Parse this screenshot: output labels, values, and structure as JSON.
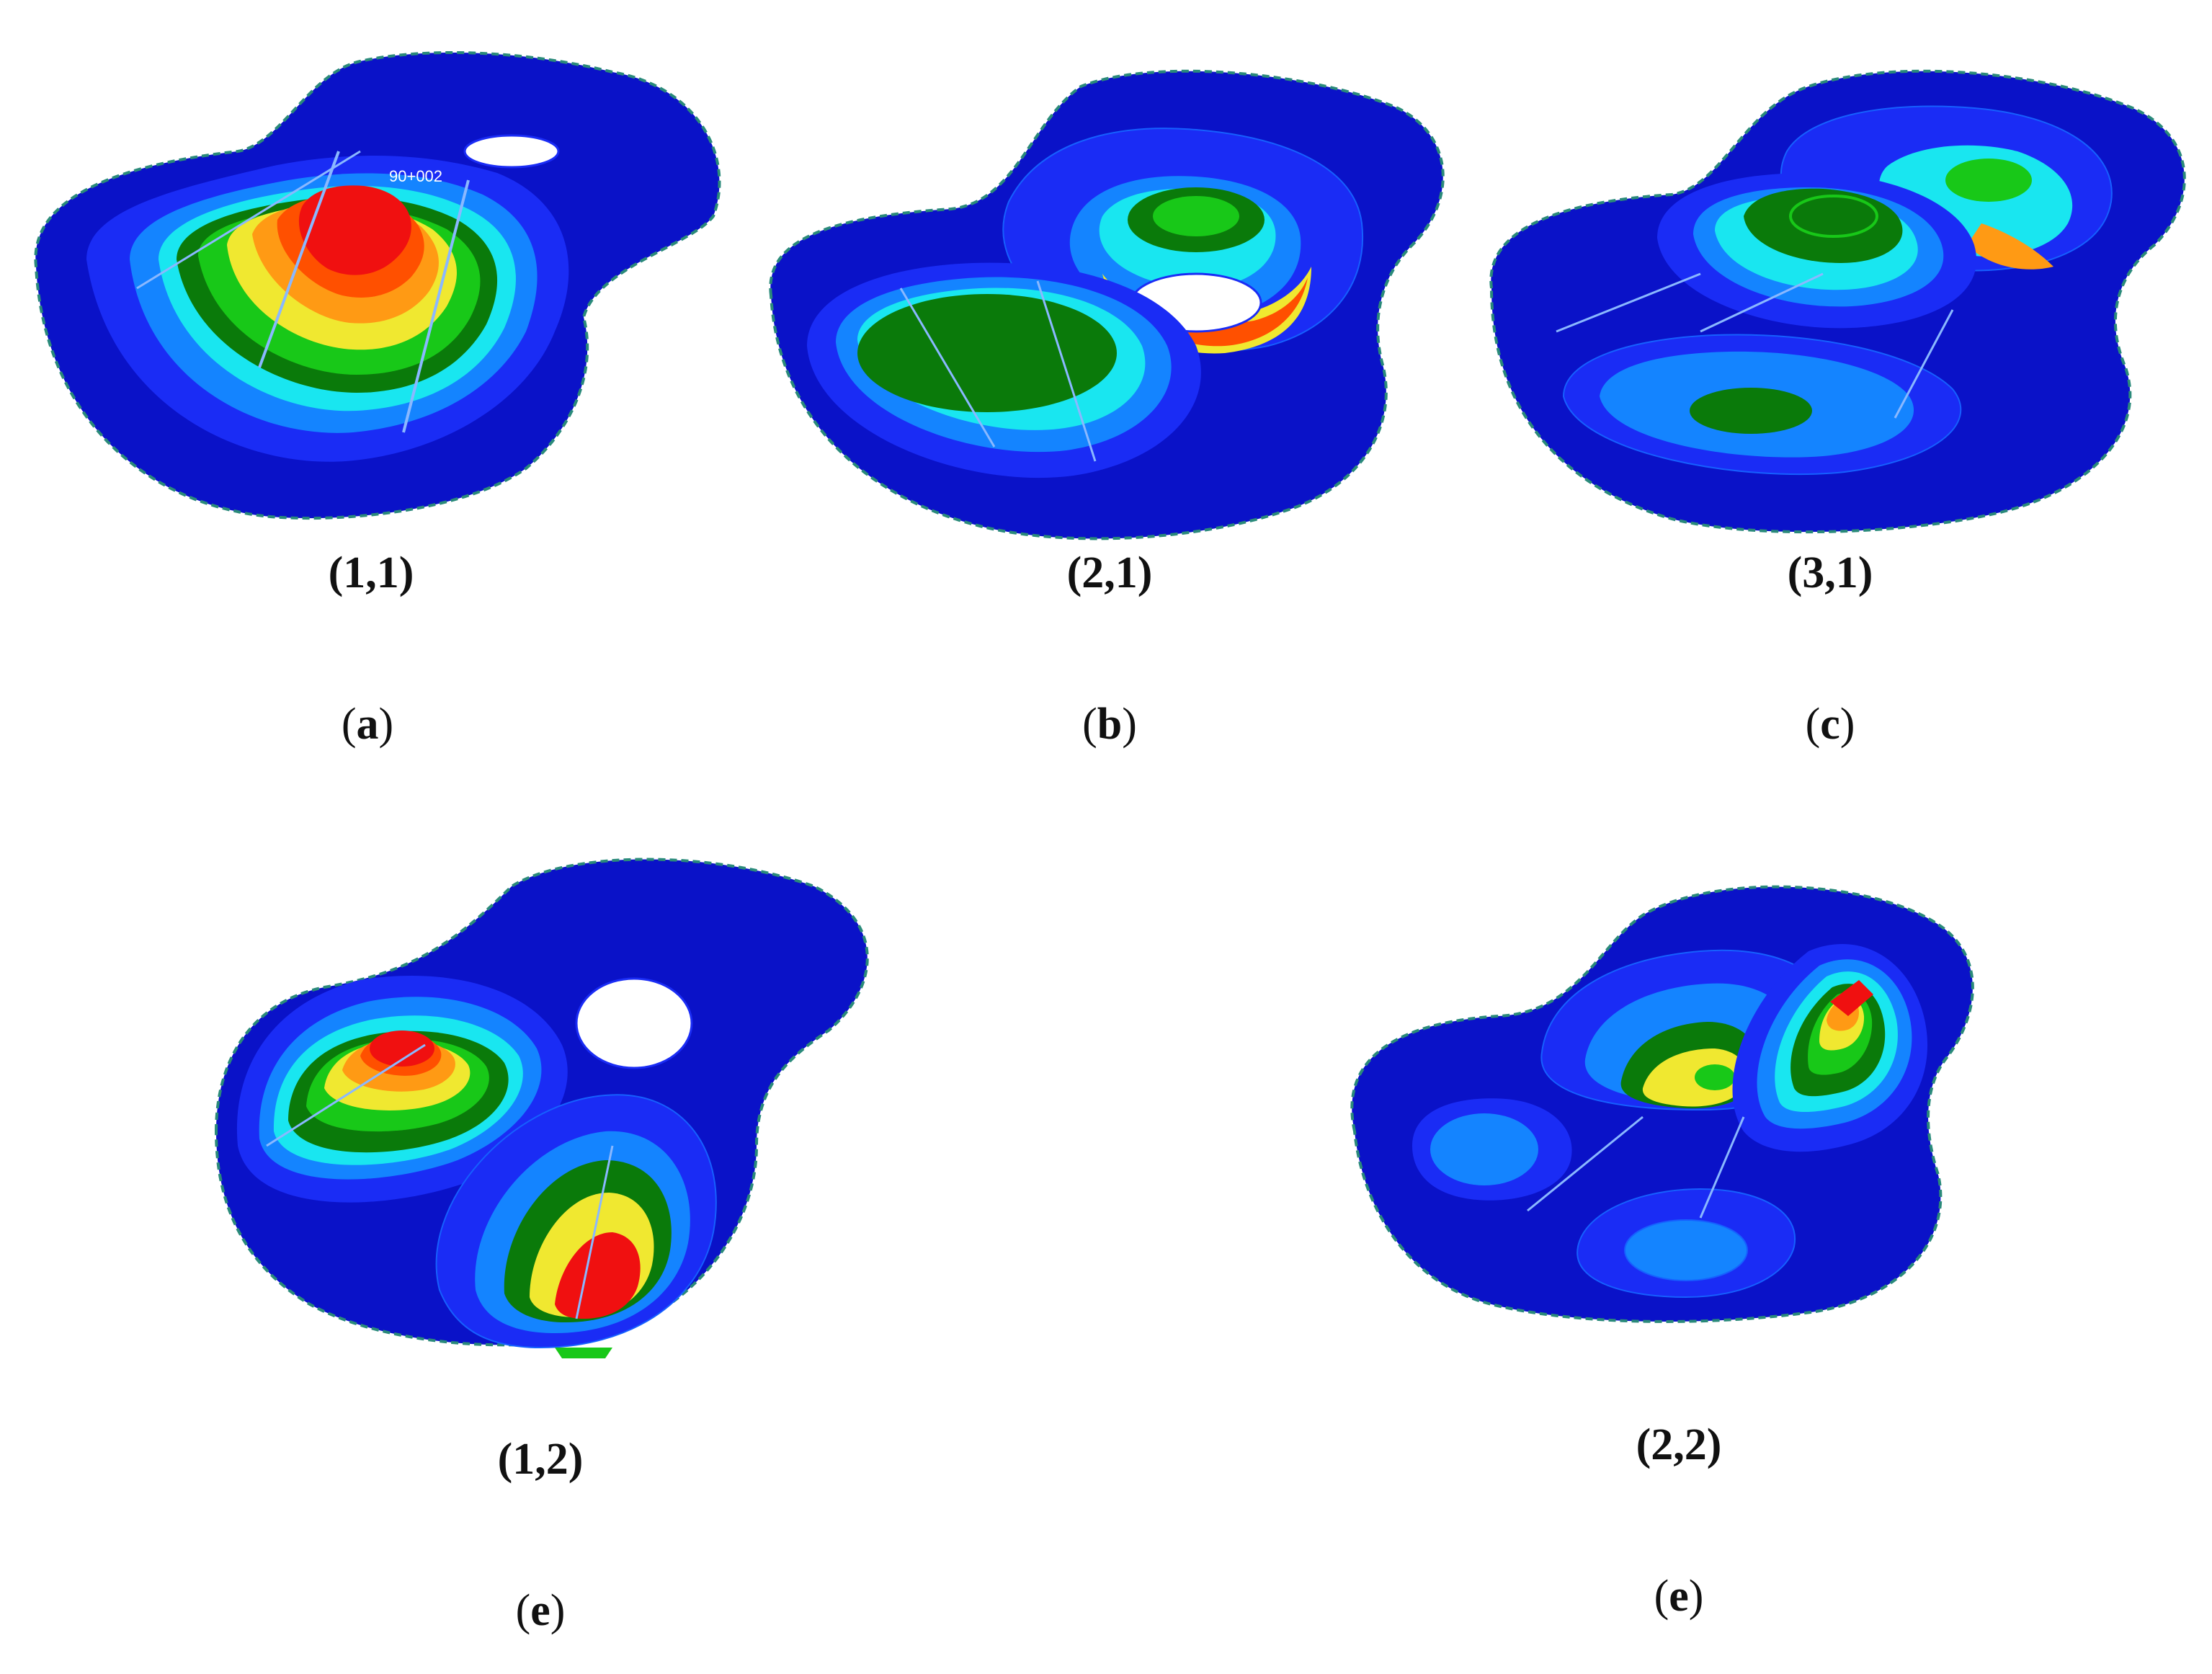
{
  "colors": {
    "outer": "#0a12c8",
    "level1": "#1a2cf5",
    "level2": "#1484ff",
    "level3": "#19e6f0",
    "level4": "#0a7a0a",
    "level5": "#18c818",
    "level6": "#f0e830",
    "level7": "#ff9a14",
    "level8": "#ff5000",
    "level9": "#f01010",
    "mesh": "#1660ff",
    "edge": "#2a8a7a",
    "text": "#111111"
  },
  "panels": [
    {
      "mode": "(1,1)",
      "letter": "a",
      "annotation": "90+002"
    },
    {
      "mode": "(2,1)",
      "letter": "b"
    },
    {
      "mode": "(3,1)",
      "letter": "c"
    },
    {
      "mode": "(1,2)",
      "letter": "e"
    },
    {
      "mode": "(2,2)",
      "letter": "e"
    }
  ]
}
